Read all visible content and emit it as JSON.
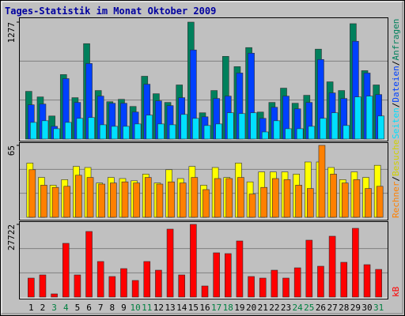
{
  "chart_data": [
    {
      "type": "bar",
      "title": "Tages-Statistik im Monat Oktober 2009",
      "legend_separator": "/",
      "ylim": [
        0,
        1277
      ],
      "yticks": [
        1277
      ],
      "series": [
        {
          "name": "Anfragen",
          "color": "#00805c",
          "values": [
            521,
            460,
            252,
            704,
            452,
            1042,
            530,
            408,
            434,
            356,
            686,
            495,
            400,
            591,
            1277,
            287,
            530,
            903,
            791,
            999,
            295,
            400,
            556,
            391,
            478,
            982,
            625,
            530,
            1260,
            747,
            591
          ]
        },
        {
          "name": "Dateien",
          "color": "#0040ff",
          "values": [
            374,
            382,
            139,
            660,
            400,
            825,
            469,
            391,
            391,
            295,
            599,
            417,
            365,
            452,
            973,
            243,
            443,
            469,
            721,
            938,
            226,
            347,
            469,
            330,
            400,
            869,
            504,
            443,
            1068,
            721,
            486
          ]
        },
        {
          "name": "Seiten",
          "color": "#00e0ff",
          "values": [
            182,
            200,
            113,
            182,
            226,
            235,
            156,
            139,
            139,
            165,
            261,
            165,
            156,
            269,
            226,
            148,
            165,
            287,
            278,
            287,
            78,
            200,
            113,
            113,
            139,
            226,
            287,
            148,
            460,
            469,
            252
          ]
        }
      ]
    },
    {
      "type": "bar",
      "legend_separator": "/",
      "ylim": [
        0,
        65
      ],
      "yticks": [
        65
      ],
      "series": [
        {
          "name": "Besuche",
          "color": "#ffff00",
          "values": [
            49,
            36,
            29,
            34,
            46,
            45,
            31,
            36,
            35,
            33,
            39,
            31,
            43,
            35,
            46,
            29,
            45,
            36,
            49,
            32,
            41,
            41,
            41,
            39,
            50,
            50,
            45,
            34,
            41,
            36,
            47
          ]
        },
        {
          "name": "Rechner",
          "color": "#ff8000",
          "values": [
            43,
            29,
            27,
            28,
            38,
            36,
            30,
            31,
            32,
            31,
            36,
            30,
            32,
            31,
            36,
            25,
            35,
            35,
            36,
            21,
            27,
            35,
            34,
            29,
            26,
            65,
            39,
            31,
            34,
            26,
            28
          ]
        }
      ]
    },
    {
      "type": "bar",
      "ylim": [
        0,
        27722
      ],
      "yticks": [
        27722
      ],
      "categories": [
        "1",
        "2",
        "3",
        "4",
        "5",
        "6",
        "7",
        "8",
        "9",
        "10",
        "11",
        "12",
        "13",
        "14",
        "15",
        "16",
        "17",
        "18",
        "19",
        "20",
        "21",
        "22",
        "23",
        "24",
        "25",
        "26",
        "27",
        "28",
        "29",
        "30",
        "31"
      ],
      "label_colors": [
        "#000",
        "#000",
        "#008040",
        "#008040",
        "#000",
        "#000",
        "#000",
        "#000",
        "#000",
        "#008040",
        "#008040",
        "#000",
        "#000",
        "#000",
        "#000",
        "#000",
        "#008040",
        "#008040",
        "#000",
        "#000",
        "#000",
        "#000",
        "#000",
        "#008040",
        "#008040",
        "#000",
        "#000",
        "#000",
        "#000",
        "#000",
        "#008040"
      ],
      "series": [
        {
          "name": "kB",
          "color": "#ff0000",
          "values": [
            7232,
            8437,
            1205,
            20490,
            8437,
            25010,
            13560,
            7834,
            10848,
            6328,
            13560,
            10245,
            25914,
            8437,
            27722,
            4219,
            16874,
            16573,
            21394,
            7834,
            7232,
            10245,
            7232,
            11149,
            21695,
            11752,
            23202,
            13258,
            26215,
            12354,
            10546
          ]
        }
      ]
    }
  ]
}
